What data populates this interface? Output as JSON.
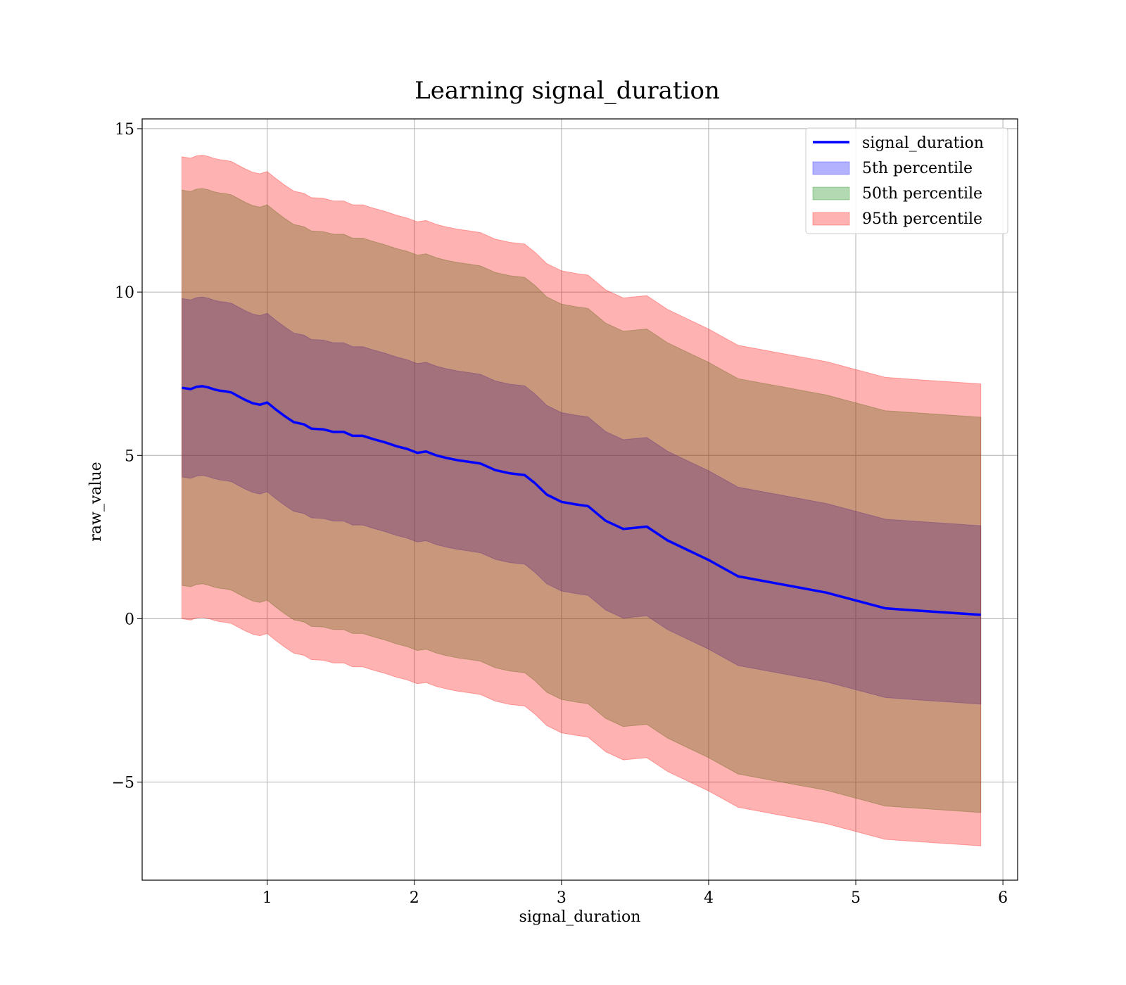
{
  "chart_data": {
    "type": "area",
    "title": "Learning signal_duration",
    "xlabel": "signal_duration",
    "ylabel": "raw_value",
    "xlim": [
      0.15,
      6.1
    ],
    "ylim": [
      -8.0,
      15.3
    ],
    "xticks": [
      1,
      2,
      3,
      4,
      5,
      6
    ],
    "xtick_labels": [
      "1",
      "2",
      "3",
      "4",
      "5",
      "6"
    ],
    "yticks": [
      -5,
      0,
      5,
      10,
      15
    ],
    "ytick_labels": [
      "−5",
      "0",
      "5",
      "10",
      "15"
    ],
    "grid": true,
    "legend_position": "top-right",
    "x": [
      0.42,
      0.48,
      0.52,
      0.56,
      0.6,
      0.64,
      0.68,
      0.72,
      0.76,
      0.8,
      0.85,
      0.9,
      0.95,
      1.0,
      1.06,
      1.12,
      1.18,
      1.25,
      1.3,
      1.38,
      1.45,
      1.52,
      1.58,
      1.65,
      1.72,
      1.8,
      1.88,
      1.95,
      2.02,
      2.08,
      2.15,
      2.22,
      2.3,
      2.38,
      2.45,
      2.55,
      2.65,
      2.75,
      2.82,
      2.9,
      3.0,
      3.1,
      3.18,
      3.3,
      3.42,
      3.58,
      3.72,
      3.85,
      4.0,
      4.2,
      4.5,
      4.8,
      5.2,
      5.42,
      5.85
    ],
    "series": [
      {
        "name": "signal_duration",
        "kind": "line",
        "color": "#0000ff",
        "values": [
          7.07,
          7.03,
          7.1,
          7.12,
          7.08,
          7.02,
          6.98,
          6.96,
          6.92,
          6.82,
          6.7,
          6.6,
          6.55,
          6.62,
          6.4,
          6.2,
          6.02,
          5.95,
          5.82,
          5.8,
          5.72,
          5.72,
          5.6,
          5.6,
          5.5,
          5.4,
          5.28,
          5.2,
          5.08,
          5.12,
          5.0,
          4.92,
          4.85,
          4.8,
          4.75,
          4.55,
          4.45,
          4.4,
          4.15,
          3.8,
          3.58,
          3.5,
          3.45,
          3.0,
          2.75,
          2.82,
          2.4,
          2.12,
          1.8,
          1.3,
          1.05,
          0.8,
          0.32,
          0.25,
          0.12
        ]
      },
      {
        "name": "5th percentile",
        "kind": "band",
        "color": "#0000ff",
        "opacity": 0.3,
        "offset": 2.73
      },
      {
        "name": "50th percentile",
        "kind": "band",
        "color": "#008000",
        "opacity": 0.3,
        "offset": 6.05
      },
      {
        "name": "95th percentile",
        "kind": "band",
        "color": "#ff0000",
        "opacity": 0.3,
        "offset": 7.07
      }
    ]
  }
}
